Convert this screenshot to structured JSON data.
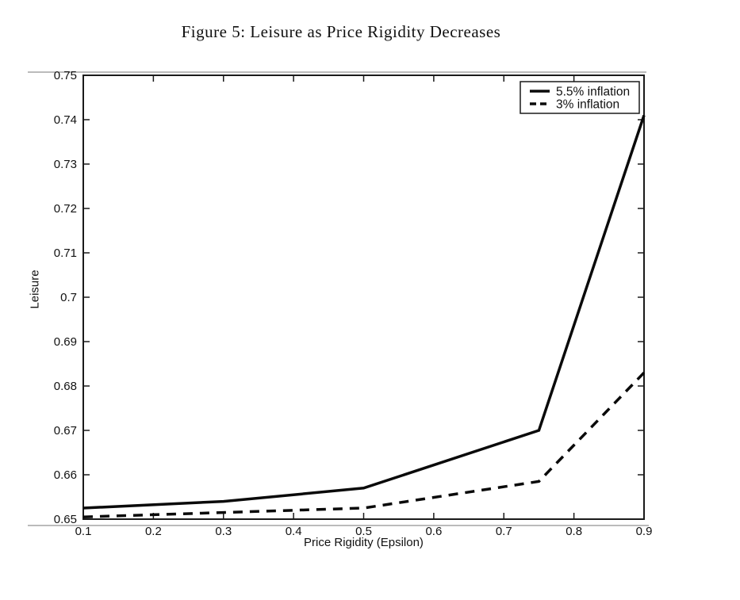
{
  "figure": {
    "title": "Figure 5: Leisure as Price Rigidity Decreases"
  },
  "chart_data": {
    "type": "line",
    "title": "Figure 5: Leisure as Price Rigidity Decreases",
    "xlabel": "Price Rigidity (Epsilon)",
    "ylabel": "Leisure",
    "xlim": [
      0.1,
      0.9
    ],
    "ylim": [
      0.65,
      0.75
    ],
    "xticks": [
      0.1,
      0.2,
      0.3,
      0.4,
      0.5,
      0.6,
      0.7,
      0.8,
      0.9
    ],
    "xtick_labels": [
      "0.1",
      "0.2",
      "0.3",
      "0.4",
      "0.5",
      "0.6",
      "0.7",
      "0.8",
      "0.9"
    ],
    "yticks": [
      0.65,
      0.66,
      0.67,
      0.68,
      0.69,
      0.7,
      0.71,
      0.72,
      0.73,
      0.74,
      0.75
    ],
    "ytick_labels": [
      "0.65",
      "0.66",
      "0.67",
      "0.68",
      "0.69",
      "0.7",
      "0.71",
      "0.72",
      "0.73",
      "0.74",
      "0.75"
    ],
    "grid": false,
    "legend_position": "top-right",
    "x": [
      0.1,
      0.3,
      0.5,
      0.75,
      0.9
    ],
    "series": [
      {
        "name": "5.5% inflation",
        "style": "solid",
        "values": [
          0.6525,
          0.654,
          0.657,
          0.67,
          0.741
        ]
      },
      {
        "name": "3% inflation",
        "style": "dashed",
        "values": [
          0.6505,
          0.6515,
          0.6525,
          0.6585,
          0.683
        ]
      }
    ],
    "colors": {
      "line": "#0a0a0a",
      "axis": "#1a1a1a",
      "background": "#ffffff",
      "outer_rule": "#777777"
    }
  }
}
